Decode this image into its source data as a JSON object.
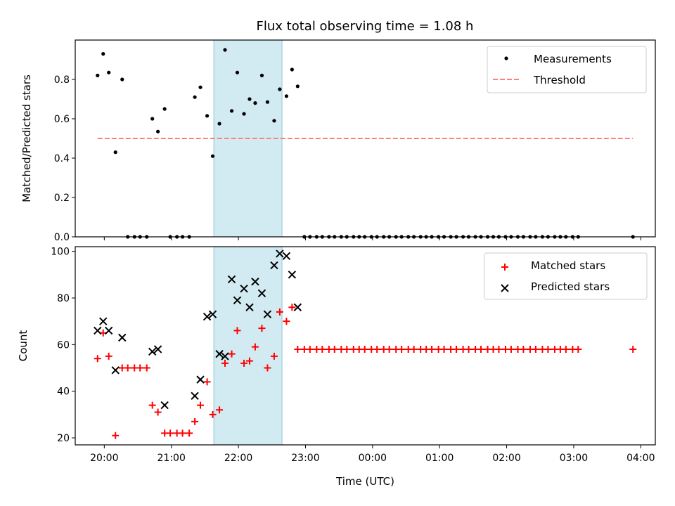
{
  "title": "Flux total observing time = 1.08 h",
  "colors": {
    "measurement": "#000000",
    "threshold": "#ff7f7f",
    "matched": "#ff0000",
    "predicted": "#000000",
    "shade": "#add8e6"
  },
  "chart_data": [
    {
      "type": "scatter",
      "title": "Flux total observing time = 1.08 h",
      "xlabel": "",
      "ylabel": "Matched/Predicted stars",
      "ylim": [
        0,
        1.0
      ],
      "yticks": [
        0.0,
        0.2,
        0.4,
        0.6,
        0.8
      ],
      "yticklabels": [
        "0.0",
        "0.2",
        "0.4",
        "0.6",
        "0.8"
      ],
      "xlim": [
        "19:34",
        "04:13"
      ],
      "x_axis": "time (hours, wraps past midnight)",
      "grid": false,
      "legend_position": "top-right",
      "legend": [
        "Measurements",
        "Threshold"
      ],
      "shaded_span": {
        "from": "21:38",
        "to": "22:39"
      },
      "threshold": {
        "name": "Threshold",
        "y": 0.5,
        "x_from": "19:54",
        "x_to": "03:53",
        "style": "dashed"
      },
      "series": [
        {
          "name": "Measurements",
          "marker": "dot",
          "points": [
            [
              "19:54",
              0.82
            ],
            [
              "19:59",
              0.93
            ],
            [
              "20:04",
              0.835
            ],
            [
              "20:10",
              0.43
            ],
            [
              "20:16",
              0.8
            ],
            [
              "20:21",
              0.0
            ],
            [
              "20:27",
              0.0
            ],
            [
              "20:32",
              0.0
            ],
            [
              "20:38",
              0.0
            ],
            [
              "20:43",
              0.6
            ],
            [
              "20:48",
              0.535
            ],
            [
              "20:54",
              0.65
            ],
            [
              "20:59",
              0.0
            ],
            [
              "21:05",
              0.0
            ],
            [
              "21:10",
              0.0
            ],
            [
              "21:16",
              0.0
            ],
            [
              "21:21",
              0.71
            ],
            [
              "21:26",
              0.76
            ],
            [
              "21:32",
              0.615
            ],
            [
              "21:37",
              0.41
            ],
            [
              "21:43",
              0.575
            ],
            [
              "21:48",
              0.95
            ],
            [
              "21:54",
              0.64
            ],
            [
              "21:59",
              0.835
            ],
            [
              "22:05",
              0.625
            ],
            [
              "22:10",
              0.7
            ],
            [
              "22:15",
              0.68
            ],
            [
              "22:21",
              0.82
            ],
            [
              "22:26",
              0.685
            ],
            [
              "22:32",
              0.59
            ],
            [
              "22:37",
              0.75
            ],
            [
              "22:43",
              0.715
            ],
            [
              "22:48",
              0.85
            ],
            [
              "22:53",
              0.765
            ],
            [
              "22:59",
              0.0
            ],
            [
              "23:04",
              0.0
            ],
            [
              "23:10",
              0.0
            ],
            [
              "23:15",
              0.0
            ],
            [
              "23:21",
              0.0
            ],
            [
              "23:26",
              0.0
            ],
            [
              "23:32",
              0.0
            ],
            [
              "23:37",
              0.0
            ],
            [
              "23:43",
              0.0
            ],
            [
              "23:48",
              0.0
            ],
            [
              "23:53",
              0.0
            ],
            [
              "23:59",
              0.0
            ],
            [
              "00:04",
              0.0
            ],
            [
              "00:10",
              0.0
            ],
            [
              "00:15",
              0.0
            ],
            [
              "00:21",
              0.0
            ],
            [
              "00:26",
              0.0
            ],
            [
              "00:32",
              0.0
            ],
            [
              "00:37",
              0.0
            ],
            [
              "00:43",
              0.0
            ],
            [
              "00:48",
              0.0
            ],
            [
              "00:53",
              0.0
            ],
            [
              "00:59",
              0.0
            ],
            [
              "01:04",
              0.0
            ],
            [
              "01:10",
              0.0
            ],
            [
              "01:15",
              0.0
            ],
            [
              "01:21",
              0.0
            ],
            [
              "01:26",
              0.0
            ],
            [
              "01:32",
              0.0
            ],
            [
              "01:37",
              0.0
            ],
            [
              "01:43",
              0.0
            ],
            [
              "01:48",
              0.0
            ],
            [
              "01:53",
              0.0
            ],
            [
              "01:59",
              0.0
            ],
            [
              "02:04",
              0.0
            ],
            [
              "02:10",
              0.0
            ],
            [
              "02:15",
              0.0
            ],
            [
              "02:21",
              0.0
            ],
            [
              "02:26",
              0.0
            ],
            [
              "02:32",
              0.0
            ],
            [
              "02:37",
              0.0
            ],
            [
              "02:43",
              0.0
            ],
            [
              "02:48",
              0.0
            ],
            [
              "02:53",
              0.0
            ],
            [
              "02:59",
              0.0
            ],
            [
              "03:04",
              0.0
            ],
            [
              "03:53",
              0.0
            ]
          ]
        }
      ]
    },
    {
      "type": "scatter",
      "title": "",
      "xlabel": "Time (UTC)",
      "ylabel": "Count",
      "ylim": [
        17,
        102
      ],
      "yticks": [
        20,
        40,
        60,
        80,
        100
      ],
      "yticklabels": [
        "20",
        "40",
        "60",
        "80",
        "100"
      ],
      "xlim": [
        "19:34",
        "04:13"
      ],
      "xticks": [
        "20:00",
        "21:00",
        "22:00",
        "23:00",
        "00:00",
        "01:00",
        "02:00",
        "03:00",
        "04:00"
      ],
      "xticklabels": [
        "20:00",
        "21:00",
        "22:00",
        "23:00",
        "00:00",
        "01:00",
        "02:00",
        "03:00",
        "04:00"
      ],
      "grid": false,
      "legend_position": "top-right",
      "legend": [
        "Matched stars",
        "Predicted stars"
      ],
      "shaded_span": {
        "from": "21:38",
        "to": "22:39"
      },
      "series": [
        {
          "name": "Matched stars",
          "marker": "plus",
          "points": [
            [
              "19:54",
              54
            ],
            [
              "19:59",
              65
            ],
            [
              "20:04",
              55
            ],
            [
              "20:10",
              21
            ],
            [
              "20:16",
              50
            ],
            [
              "20:21",
              50
            ],
            [
              "20:27",
              50
            ],
            [
              "20:32",
              50
            ],
            [
              "20:38",
              50
            ],
            [
              "20:43",
              34
            ],
            [
              "20:48",
              31
            ],
            [
              "20:54",
              22
            ],
            [
              "20:59",
              22
            ],
            [
              "21:05",
              22
            ],
            [
              "21:10",
              22
            ],
            [
              "21:16",
              22
            ],
            [
              "21:21",
              27
            ],
            [
              "21:26",
              34
            ],
            [
              "21:32",
              44
            ],
            [
              "21:37",
              30
            ],
            [
              "21:43",
              32
            ],
            [
              "21:48",
              52
            ],
            [
              "21:54",
              56
            ],
            [
              "21:59",
              66
            ],
            [
              "22:05",
              52
            ],
            [
              "22:10",
              53
            ],
            [
              "22:15",
              59
            ],
            [
              "22:21",
              67
            ],
            [
              "22:26",
              50
            ],
            [
              "22:32",
              55
            ],
            [
              "22:37",
              74
            ],
            [
              "22:43",
              70
            ],
            [
              "22:48",
              76
            ],
            [
              "22:53",
              58
            ],
            [
              "22:59",
              58
            ],
            [
              "23:04",
              58
            ],
            [
              "23:10",
              58
            ],
            [
              "23:15",
              58
            ],
            [
              "23:21",
              58
            ],
            [
              "23:26",
              58
            ],
            [
              "23:32",
              58
            ],
            [
              "23:37",
              58
            ],
            [
              "23:43",
              58
            ],
            [
              "23:48",
              58
            ],
            [
              "23:53",
              58
            ],
            [
              "23:59",
              58
            ],
            [
              "00:04",
              58
            ],
            [
              "00:10",
              58
            ],
            [
              "00:15",
              58
            ],
            [
              "00:21",
              58
            ],
            [
              "00:26",
              58
            ],
            [
              "00:32",
              58
            ],
            [
              "00:37",
              58
            ],
            [
              "00:43",
              58
            ],
            [
              "00:48",
              58
            ],
            [
              "00:53",
              58
            ],
            [
              "00:59",
              58
            ],
            [
              "01:04",
              58
            ],
            [
              "01:10",
              58
            ],
            [
              "01:15",
              58
            ],
            [
              "01:21",
              58
            ],
            [
              "01:26",
              58
            ],
            [
              "01:32",
              58
            ],
            [
              "01:37",
              58
            ],
            [
              "01:43",
              58
            ],
            [
              "01:48",
              58
            ],
            [
              "01:53",
              58
            ],
            [
              "01:59",
              58
            ],
            [
              "02:04",
              58
            ],
            [
              "02:10",
              58
            ],
            [
              "02:15",
              58
            ],
            [
              "02:21",
              58
            ],
            [
              "02:26",
              58
            ],
            [
              "02:32",
              58
            ],
            [
              "02:37",
              58
            ],
            [
              "02:43",
              58
            ],
            [
              "02:48",
              58
            ],
            [
              "02:53",
              58
            ],
            [
              "02:59",
              58
            ],
            [
              "03:04",
              58
            ],
            [
              "03:53",
              58
            ]
          ]
        },
        {
          "name": "Predicted stars",
          "marker": "x",
          "points": [
            [
              "19:54",
              66
            ],
            [
              "19:59",
              70
            ],
            [
              "20:04",
              66
            ],
            [
              "20:10",
              49
            ],
            [
              "20:16",
              63
            ],
            [
              "20:43",
              57
            ],
            [
              "20:48",
              58
            ],
            [
              "20:54",
              34
            ],
            [
              "21:21",
              38
            ],
            [
              "21:26",
              45
            ],
            [
              "21:32",
              72
            ],
            [
              "21:37",
              73
            ],
            [
              "21:43",
              56
            ],
            [
              "21:48",
              55
            ],
            [
              "21:54",
              88
            ],
            [
              "21:59",
              79
            ],
            [
              "22:05",
              84
            ],
            [
              "22:10",
              76
            ],
            [
              "22:15",
              87
            ],
            [
              "22:21",
              82
            ],
            [
              "22:26",
              73
            ],
            [
              "22:32",
              94
            ],
            [
              "22:37",
              99
            ],
            [
              "22:43",
              98
            ],
            [
              "22:48",
              90
            ],
            [
              "22:53",
              76
            ]
          ]
        }
      ]
    }
  ]
}
